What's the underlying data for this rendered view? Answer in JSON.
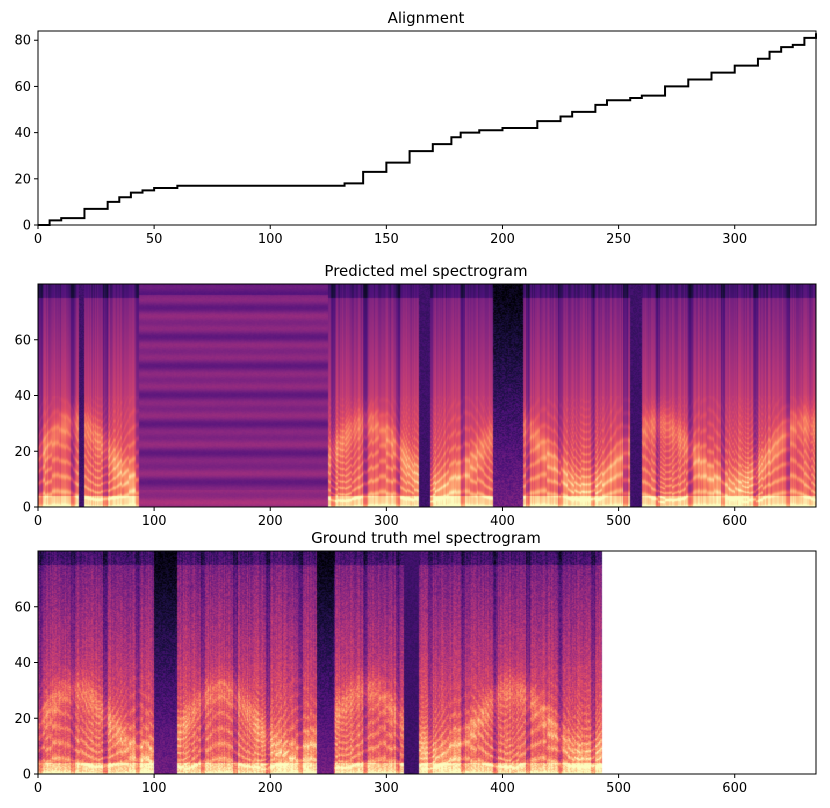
{
  "figure": {
    "background": "#ffffff"
  },
  "chart_data": [
    {
      "type": "line",
      "title": "Alignment",
      "xlim": [
        0,
        335
      ],
      "ylim": [
        0,
        84
      ],
      "x_ticks": [
        0,
        50,
        100,
        150,
        200,
        250,
        300
      ],
      "y_ticks": [
        0,
        20,
        40,
        60,
        80
      ],
      "line_color": "#000000",
      "series": [
        {
          "name": "alignment",
          "x": [
            0,
            5,
            10,
            20,
            30,
            35,
            40,
            45,
            50,
            55,
            60,
            80,
            100,
            120,
            128,
            132,
            140,
            150,
            160,
            170,
            178,
            182,
            190,
            200,
            205,
            215,
            225,
            230,
            240,
            245,
            255,
            260,
            270,
            280,
            290,
            300,
            310,
            315,
            320,
            325,
            330,
            335
          ],
          "y": [
            0,
            2,
            3,
            7,
            10,
            12,
            14,
            15,
            16,
            16,
            17,
            17,
            17,
            17,
            17,
            18,
            23,
            27,
            32,
            35,
            38,
            40,
            41,
            42,
            42,
            45,
            47,
            49,
            52,
            54,
            55,
            56,
            60,
            63,
            66,
            69,
            72,
            75,
            77,
            78,
            81,
            83
          ]
        }
      ]
    },
    {
      "type": "heatmap",
      "title": "Predicted mel spectrogram",
      "xlim": [
        0,
        670
      ],
      "ylim": [
        0,
        80
      ],
      "x_ticks": [
        0,
        100,
        200,
        300,
        400,
        500,
        600
      ],
      "y_ticks": [
        0,
        20,
        40,
        60
      ],
      "colormap": "magma",
      "frames": 670,
      "mel_bins": 80,
      "segments": [
        {
          "start": 0,
          "end": 35,
          "kind": "speech"
        },
        {
          "start": 35,
          "end": 40,
          "kind": "gap"
        },
        {
          "start": 40,
          "end": 87,
          "kind": "speech"
        },
        {
          "start": 87,
          "end": 250,
          "kind": "silence"
        },
        {
          "start": 250,
          "end": 328,
          "kind": "speech"
        },
        {
          "start": 328,
          "end": 338,
          "kind": "gap"
        },
        {
          "start": 338,
          "end": 392,
          "kind": "speech"
        },
        {
          "start": 392,
          "end": 418,
          "kind": "pause"
        },
        {
          "start": 418,
          "end": 510,
          "kind": "speech"
        },
        {
          "start": 510,
          "end": 520,
          "kind": "gap"
        },
        {
          "start": 520,
          "end": 670,
          "kind": "speech"
        }
      ]
    },
    {
      "type": "heatmap",
      "title": "Ground truth mel spectrogram",
      "xlim": [
        0,
        670
      ],
      "ylim": [
        0,
        80
      ],
      "x_ticks": [
        0,
        100,
        200,
        300,
        400,
        500,
        600
      ],
      "y_ticks": [
        0,
        20,
        40,
        60
      ],
      "colormap": "magma",
      "frames": 486,
      "mel_bins": 80,
      "segments": [
        {
          "start": 0,
          "end": 100,
          "kind": "speech"
        },
        {
          "start": 100,
          "end": 120,
          "kind": "breathy"
        },
        {
          "start": 120,
          "end": 240,
          "kind": "speech"
        },
        {
          "start": 240,
          "end": 255,
          "kind": "breathy"
        },
        {
          "start": 255,
          "end": 315,
          "kind": "speech"
        },
        {
          "start": 315,
          "end": 328,
          "kind": "gap"
        },
        {
          "start": 328,
          "end": 486,
          "kind": "speech"
        }
      ]
    }
  ]
}
